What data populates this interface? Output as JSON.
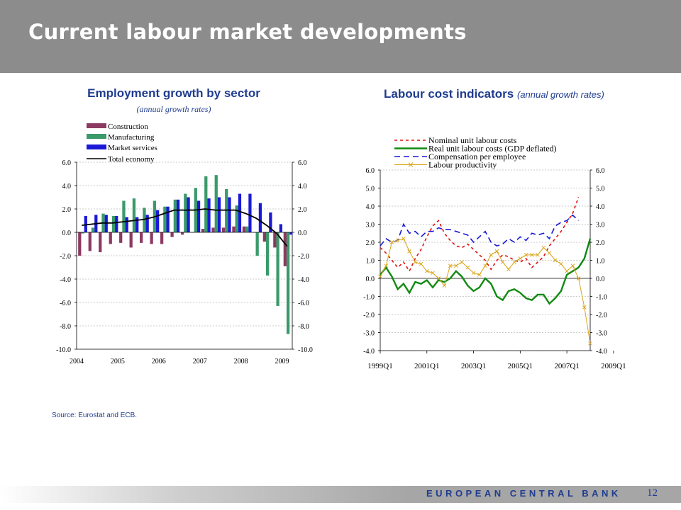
{
  "header": {
    "title": "Current labour market developments"
  },
  "chart1": {
    "title": "Employment growth by sector",
    "subtitle": "(annual growth rates)"
  },
  "chart2": {
    "title": "Labour cost indicators",
    "subtitle": "(annual growth rates)"
  },
  "source": "Source: Eurostat and ECB.",
  "footer": {
    "bank": "EUROPEAN CENTRAL BANK",
    "page": "12"
  },
  "colors": {
    "construction": "#8b3a62",
    "manufacturing": "#3a9a6a",
    "market_services": "#1a1ad6",
    "total": "#000000",
    "nominal_ulc": "#e01010",
    "real_ulc": "#108a10",
    "compensation": "#1a1ad6",
    "productivity": "#d9a41a"
  },
  "chart_data": [
    {
      "type": "bar",
      "title": "Employment growth by sector",
      "subtitle": "(annual growth rates)",
      "ylim": [
        -10,
        6
      ],
      "yticks": [
        "6.0",
        "4.0",
        "2.0",
        "0.0",
        "-2.0",
        "-4.0",
        "-6.0",
        "-8.0",
        "-10.0"
      ],
      "xticks": [
        "2004",
        "2005",
        "2006",
        "2007",
        "2008",
        "2009"
      ],
      "legend": "top-left",
      "series": [
        {
          "name": "Construction",
          "kind": "bar",
          "values": [
            -2.0,
            -1.6,
            -1.7,
            -1.0,
            -0.9,
            -1.3,
            -0.9,
            -1.0,
            -1.0,
            -0.4,
            -0.2,
            0.0,
            0.3,
            0.4,
            0.4,
            0.5,
            0.5,
            0.0,
            -0.8,
            -1.3,
            -2.9
          ]
        },
        {
          "name": "Manufacturing",
          "kind": "bar",
          "values": [
            -0.1,
            0.4,
            1.6,
            1.4,
            2.7,
            2.9,
            2.1,
            2.7,
            2.2,
            2.8,
            3.3,
            3.8,
            4.8,
            4.9,
            3.7,
            2.3,
            0.5,
            -2.0,
            -3.7,
            -6.3,
            -8.7
          ]
        },
        {
          "name": "Market services",
          "kind": "bar",
          "values": [
            1.4,
            1.5,
            1.5,
            1.4,
            1.3,
            1.3,
            1.5,
            1.9,
            2.2,
            2.8,
            3.0,
            2.7,
            2.9,
            3.0,
            3.0,
            3.3,
            3.3,
            2.5,
            1.7,
            0.7,
            -0.2
          ]
        },
        {
          "name": "Total economy",
          "kind": "line",
          "values": [
            0.6,
            0.7,
            0.8,
            0.8,
            0.9,
            1.0,
            1.1,
            1.3,
            1.6,
            1.9,
            1.9,
            1.9,
            2.0,
            1.9,
            1.9,
            1.9,
            1.6,
            1.2,
            0.6,
            -0.1,
            -1.2
          ]
        }
      ]
    },
    {
      "type": "line",
      "title": "Labour cost indicators",
      "subtitle": "(annual growth rates)",
      "ylim": [
        -4,
        6
      ],
      "yticks": [
        "6.0",
        "5.0",
        "4.0",
        "3.0",
        "2.0",
        "1.0",
        "0.0",
        "-1.0",
        "-2.0",
        "-3.0",
        "-4.0"
      ],
      "xticks": [
        "1999Q1",
        "2001Q1",
        "2003Q1",
        "2005Q1",
        "2007Q1",
        "2009Q1"
      ],
      "legend": "top-center",
      "series": [
        {
          "name": "Nominal unit labour costs",
          "values": [
            1.7,
            1.4,
            1.0,
            0.6,
            0.9,
            0.4,
            1.1,
            1.6,
            2.3,
            2.9,
            3.2,
            2.5,
            2.1,
            1.8,
            1.7,
            1.9,
            1.6,
            1.3,
            1.0,
            0.5,
            1.0,
            1.3,
            1.2,
            1.0,
            0.9,
            1.1,
            0.6,
            0.9,
            1.2,
            1.8,
            2.2,
            2.6,
            3.1,
            3.6,
            4.5
          ]
        },
        {
          "name": "Real unit labour costs (GDP deflated)",
          "values": [
            0.2,
            0.6,
            0.1,
            -0.6,
            -0.3,
            -0.8,
            -0.2,
            -0.3,
            -0.1,
            -0.5,
            -0.1,
            -0.2,
            0.0,
            0.4,
            0.1,
            -0.4,
            -0.7,
            -0.5,
            0.0,
            -0.3,
            -1.0,
            -1.2,
            -0.7,
            -0.6,
            -0.8,
            -1.1,
            -1.2,
            -0.9,
            -0.9,
            -1.4,
            -1.1,
            -0.7,
            0.2,
            0.4,
            0.6,
            1.1,
            2.2
          ]
        },
        {
          "name": "Compensation per employee",
          "values": [
            1.8,
            2.2,
            2.0,
            2.1,
            3.0,
            2.5,
            2.6,
            2.3,
            2.6,
            2.6,
            2.8,
            2.7,
            2.7,
            2.6,
            2.5,
            2.4,
            2.0,
            2.3,
            2.6,
            2.0,
            1.8,
            1.9,
            2.2,
            2.0,
            2.3,
            2.1,
            2.5,
            2.4,
            2.5,
            2.2,
            2.9,
            3.1,
            3.2,
            3.5,
            3.2
          ]
        },
        {
          "name": "Labour productivity",
          "values": [
            0.1,
            0.7,
            2.0,
            2.1,
            2.2,
            1.5,
            0.9,
            0.8,
            0.4,
            0.3,
            0.0,
            -0.4,
            0.7,
            0.7,
            0.9,
            0.6,
            0.3,
            0.2,
            0.7,
            1.3,
            1.5,
            0.9,
            0.5,
            0.9,
            1.1,
            1.3,
            1.3,
            1.3,
            1.7,
            1.4,
            1.0,
            0.8,
            0.4,
            0.7,
            0.0,
            -1.6,
            -3.6
          ]
        }
      ]
    }
  ]
}
